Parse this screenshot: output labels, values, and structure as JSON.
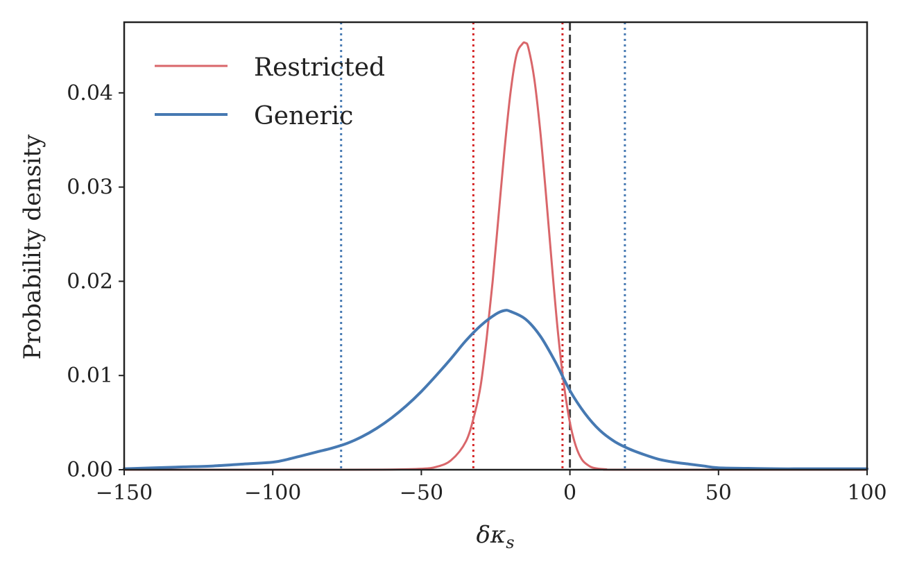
{
  "chart_data": {
    "type": "line",
    "title": "",
    "xlabel": "δκ",
    "xlabel_subscript": "s",
    "ylabel": "Probability density",
    "xlim": [
      -150,
      100
    ],
    "ylim": [
      0,
      0.0475
    ],
    "xticks": [
      -150,
      -100,
      -50,
      0,
      50,
      100
    ],
    "xtick_labels": [
      "−150",
      "−100",
      "−50",
      "0",
      "50",
      "100"
    ],
    "yticks": [
      0,
      0.01,
      0.02,
      0.03,
      0.04
    ],
    "ytick_labels": [
      "0.00",
      "0.01",
      "0.02",
      "0.03",
      "0.04"
    ],
    "legend_position": "upper-left",
    "series": [
      {
        "name": "Restricted",
        "color": "#d9666a",
        "x": [
          -150,
          -80,
          -60,
          -50,
          -45,
          -40,
          -35,
          -32,
          -30,
          -28,
          -26,
          -24,
          -22,
          -20,
          -18,
          -16,
          -15,
          -14,
          -12,
          -10,
          -8,
          -6,
          -4,
          -2,
          0,
          2,
          4,
          6,
          8,
          12,
          20,
          100
        ],
        "y": [
          0,
          0,
          2e-05,
          0.0001,
          0.0003,
          0.001,
          0.003,
          0.006,
          0.009,
          0.014,
          0.02,
          0.027,
          0.034,
          0.04,
          0.044,
          0.0452,
          0.0453,
          0.0448,
          0.0415,
          0.036,
          0.029,
          0.0215,
          0.0145,
          0.009,
          0.005,
          0.0025,
          0.0011,
          0.0005,
          0.0002,
          5e-05,
          0,
          0
        ]
      },
      {
        "name": "Generic",
        "color": "#4679b2",
        "x": [
          -150,
          -140,
          -130,
          -120,
          -110,
          -100,
          -95,
          -90,
          -85,
          -80,
          -75,
          -70,
          -65,
          -60,
          -55,
          -50,
          -45,
          -40,
          -35,
          -30,
          -25,
          -22,
          -20,
          -15,
          -10,
          -5,
          0,
          5,
          10,
          15,
          20,
          25,
          30,
          35,
          40,
          45,
          50,
          60,
          70,
          80,
          90,
          100
        ],
        "y": [
          0.0001,
          0.0002,
          0.0003,
          0.0004,
          0.0006,
          0.0008,
          0.0011,
          0.0015,
          0.0019,
          0.0023,
          0.0028,
          0.0035,
          0.0044,
          0.0055,
          0.0068,
          0.0083,
          0.01,
          0.0118,
          0.0137,
          0.0153,
          0.0165,
          0.0169,
          0.0168,
          0.016,
          0.0142,
          0.0115,
          0.0084,
          0.006,
          0.0042,
          0.003,
          0.0022,
          0.0016,
          0.0011,
          0.0008,
          0.0006,
          0.0004,
          0.0002,
          0.00015,
          0.0001,
          0.0001,
          0.0001,
          0.0001
        ]
      }
    ],
    "reference_lines": [
      {
        "name": "restricted-lower-bound",
        "x": -32.5,
        "color": "#d62728",
        "style": "dotted"
      },
      {
        "name": "restricted-upper-bound",
        "x": -2.5,
        "color": "#d62728",
        "style": "dotted"
      },
      {
        "name": "generic-lower-bound",
        "x": -77,
        "color": "#4679b2",
        "style": "dotted"
      },
      {
        "name": "generic-upper-bound",
        "x": 18.5,
        "color": "#4679b2",
        "style": "dotted"
      },
      {
        "name": "zero-line",
        "x": 0,
        "color": "#404040",
        "style": "dashed"
      }
    ]
  }
}
